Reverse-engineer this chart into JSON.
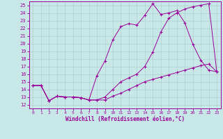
{
  "bg_color": "#c8e8e8",
  "line_color": "#990099",
  "grid_color": "#b0d0d0",
  "xlabel": "Windchill (Refroidissement éolien,°C)",
  "xlim": [
    -0.5,
    23.5
  ],
  "ylim": [
    11.5,
    25.5
  ],
  "xticks": [
    0,
    1,
    2,
    3,
    4,
    5,
    6,
    7,
    8,
    9,
    10,
    11,
    12,
    13,
    14,
    15,
    16,
    17,
    18,
    19,
    20,
    21,
    22,
    23
  ],
  "yticks": [
    12,
    13,
    14,
    15,
    16,
    17,
    18,
    19,
    20,
    21,
    22,
    23,
    24,
    25
  ],
  "line1_x": [
    0,
    1,
    2,
    3,
    4,
    5,
    6,
    7,
    8,
    9,
    10,
    11,
    12,
    13,
    14,
    15,
    16,
    17,
    18,
    19,
    20,
    21,
    22,
    23
  ],
  "line1_y": [
    14.5,
    14.5,
    12.5,
    13.1,
    13.0,
    13.0,
    12.9,
    12.6,
    12.6,
    12.6,
    13.1,
    13.5,
    14.0,
    14.5,
    15.0,
    15.3,
    15.6,
    15.9,
    16.2,
    16.5,
    16.8,
    17.1,
    17.3,
    16.3
  ],
  "line2_x": [
    0,
    1,
    2,
    3,
    4,
    5,
    6,
    7,
    8,
    9,
    10,
    11,
    12,
    13,
    14,
    15,
    16,
    17,
    18,
    19,
    20,
    21,
    22,
    23
  ],
  "line2_y": [
    14.5,
    14.5,
    12.5,
    13.1,
    13.0,
    13.0,
    12.9,
    12.6,
    15.8,
    17.7,
    20.5,
    22.2,
    22.6,
    22.4,
    23.7,
    25.2,
    23.8,
    24.0,
    24.3,
    22.7,
    19.9,
    17.8,
    16.5,
    16.3
  ],
  "line3_x": [
    0,
    1,
    2,
    3,
    4,
    5,
    6,
    7,
    8,
    9,
    10,
    11,
    12,
    13,
    14,
    15,
    16,
    17,
    18,
    19,
    20,
    21,
    22,
    23
  ],
  "line3_y": [
    14.5,
    14.5,
    12.5,
    13.1,
    13.0,
    13.0,
    12.9,
    12.6,
    12.6,
    13.0,
    14.0,
    15.0,
    15.5,
    16.0,
    17.0,
    18.9,
    21.5,
    23.3,
    24.0,
    24.5,
    24.8,
    25.0,
    25.2,
    16.3
  ]
}
